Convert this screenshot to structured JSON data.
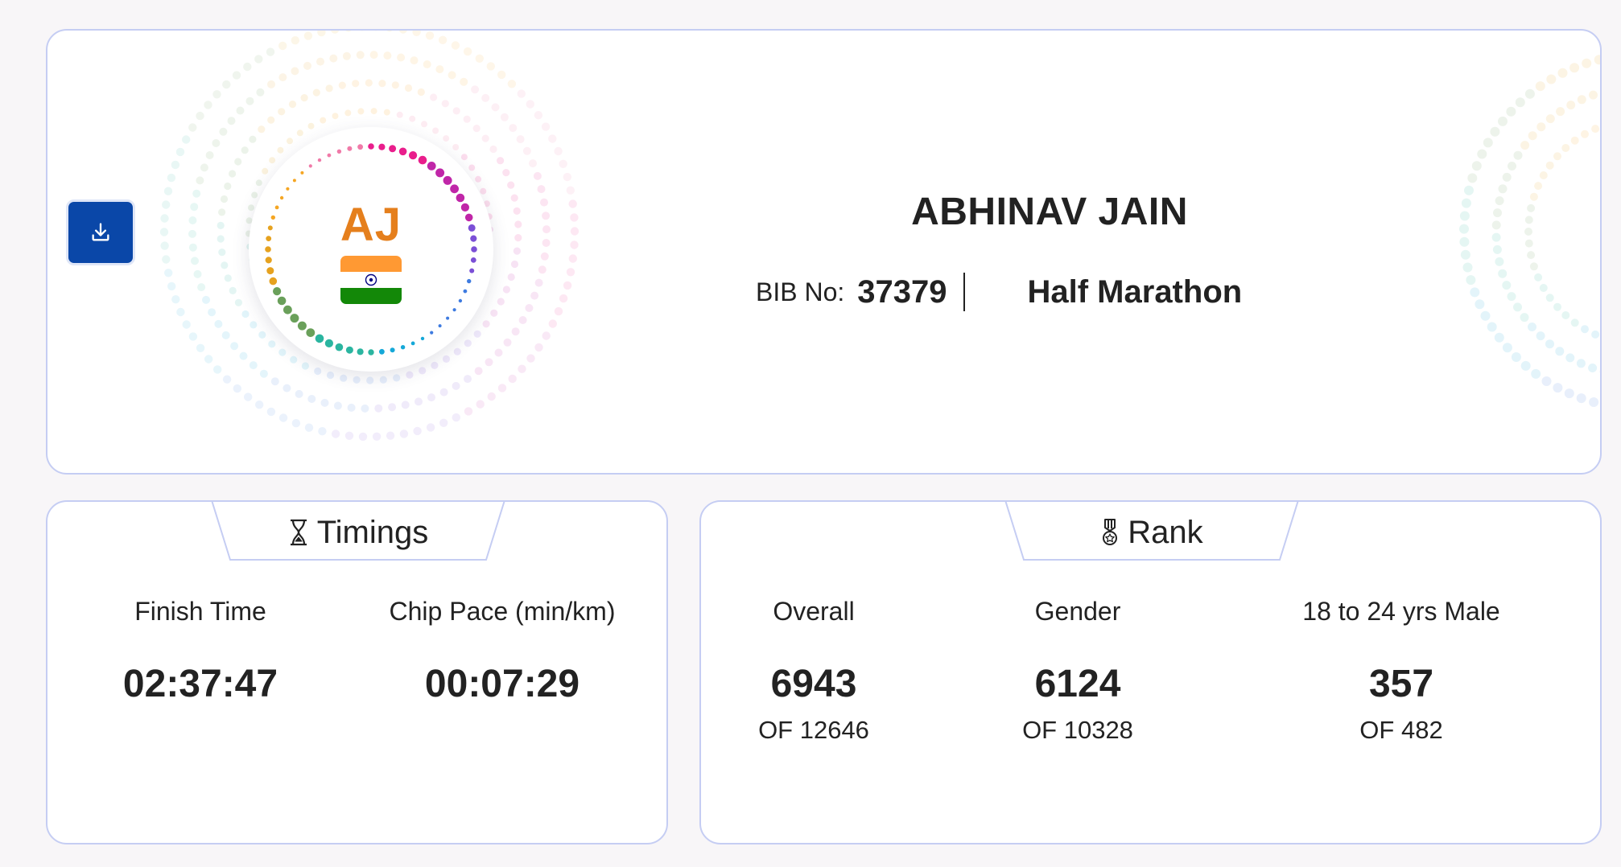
{
  "athlete": {
    "initials": "AJ",
    "name": "ABHINAV JAIN",
    "bib_label": "BIB No:",
    "bib_number": "37379",
    "race": "Half Marathon"
  },
  "download": {
    "icon": "download-icon"
  },
  "timings": {
    "title": "Timings",
    "icon": "hourglass-icon",
    "items": [
      {
        "label": "Finish Time",
        "value": "02:37:47"
      },
      {
        "label": "Chip Pace (min/km)",
        "value": "00:07:29"
      }
    ]
  },
  "rank": {
    "title": "Rank",
    "icon": "medal-icon",
    "items": [
      {
        "label": "Overall",
        "value": "6943",
        "of": "OF 12646"
      },
      {
        "label": "Gender",
        "value": "6124",
        "of": "OF 10328"
      },
      {
        "label": "18 to 24 yrs Male",
        "value": "357",
        "of": "OF 482"
      }
    ]
  },
  "colors": {
    "accent_button": "#0a47a8",
    "card_border": "#c5cdf3",
    "initials": "#e57f1c",
    "flag_saffron": "#ff9933",
    "flag_green": "#138808",
    "chakra_navy": "#000080"
  }
}
